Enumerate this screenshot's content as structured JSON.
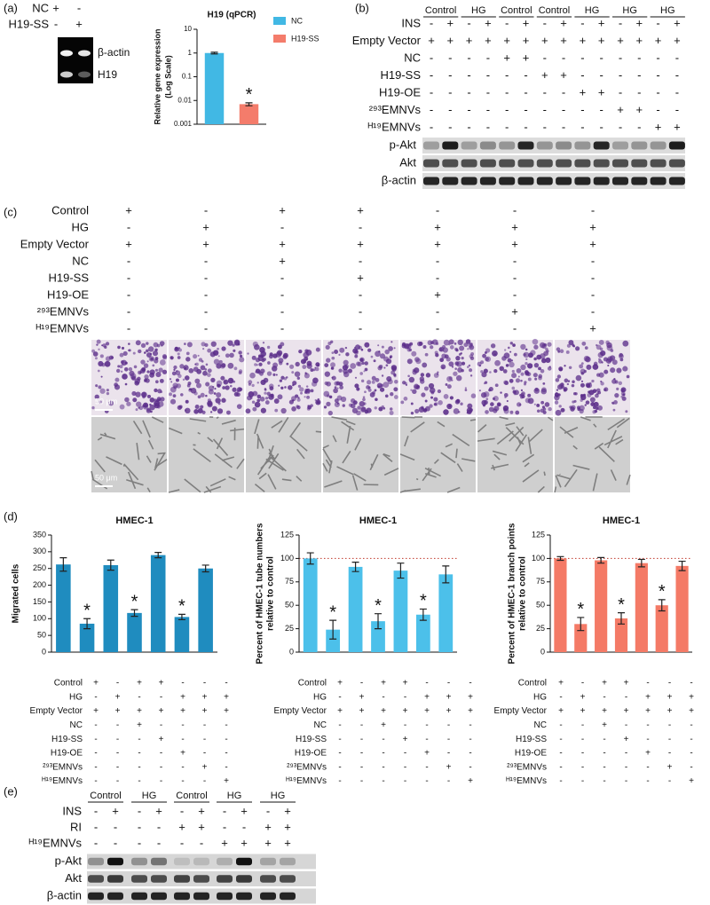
{
  "panel_labels": [
    "(a)",
    "(b)",
    "(c)",
    "(d)",
    "(e)"
  ],
  "panel_a": {
    "rows": [
      {
        "label": "NC",
        "signs": [
          "+",
          "-"
        ]
      },
      {
        "label": "H19-SS",
        "signs": [
          "-",
          "+"
        ]
      }
    ],
    "bands": [
      "β-actin",
      "H19"
    ]
  },
  "panel_b": {
    "groups": [
      "Control",
      "HG",
      "Control",
      "Control",
      "HG",
      "HG",
      "HG"
    ],
    "rows": [
      {
        "label": "INS",
        "signs": [
          "-",
          "+",
          "-",
          "+",
          "-",
          "+",
          "-",
          "+",
          "-",
          "+",
          "-",
          "+",
          "-",
          "+"
        ]
      },
      {
        "label": "Empty Vector",
        "signs": [
          "+",
          "+",
          "+",
          "+",
          "+",
          "+",
          "+",
          "+",
          "+",
          "+",
          "+",
          "+",
          "+",
          "+"
        ]
      },
      {
        "label": "NC",
        "signs": [
          "-",
          "-",
          "-",
          "-",
          "+",
          "+",
          "-",
          "-",
          "-",
          "-",
          "-",
          "-",
          "-",
          "-"
        ]
      },
      {
        "label": "H19-SS",
        "signs": [
          "-",
          "-",
          "-",
          "-",
          "-",
          "-",
          "+",
          "+",
          "-",
          "-",
          "-",
          "-",
          "-",
          "-"
        ]
      },
      {
        "label": "H19-OE",
        "signs": [
          "-",
          "-",
          "-",
          "-",
          "-",
          "-",
          "-",
          "-",
          "+",
          "+",
          "-",
          "-",
          "-",
          "-"
        ]
      },
      {
        "label": "²⁹³EMNVs",
        "signs": [
          "-",
          "-",
          "-",
          "-",
          "-",
          "-",
          "-",
          "-",
          "-",
          "-",
          "+",
          "+",
          "-",
          "-"
        ]
      },
      {
        "label": "ᴴ¹⁹EMNVs",
        "signs": [
          "-",
          "-",
          "-",
          "-",
          "-",
          "-",
          "-",
          "-",
          "-",
          "-",
          "-",
          "-",
          "+",
          "+"
        ]
      }
    ],
    "bands": [
      "p-Akt",
      "Akt",
      "β-actin"
    ]
  },
  "panel_c": {
    "rows": [
      {
        "label": "Control",
        "signs": [
          "+",
          "-",
          "+",
          "+",
          "-",
          "-",
          "-"
        ]
      },
      {
        "label": "HG",
        "signs": [
          "-",
          "+",
          "-",
          "-",
          "+",
          "+",
          "+"
        ]
      },
      {
        "label": "Empty Vector",
        "signs": [
          "+",
          "+",
          "+",
          "+",
          "+",
          "+",
          "+"
        ]
      },
      {
        "label": "NC",
        "signs": [
          "-",
          "-",
          "+",
          "-",
          "-",
          "-",
          "-"
        ]
      },
      {
        "label": "H19-SS",
        "signs": [
          "-",
          "-",
          "-",
          "+",
          "-",
          "-",
          "-"
        ]
      },
      {
        "label": "H19-OE",
        "signs": [
          "-",
          "-",
          "-",
          "-",
          "+",
          "-",
          "-"
        ]
      },
      {
        "label": "²⁹³EMNVs",
        "signs": [
          "-",
          "-",
          "-",
          "-",
          "-",
          "+",
          "-"
        ]
      },
      {
        "label": "ᴴ¹⁹EMNVs",
        "signs": [
          "-",
          "-",
          "-",
          "-",
          "-",
          "-",
          "+"
        ]
      }
    ],
    "scale_bar": "50 μm"
  },
  "panel_d": {
    "rows": [
      {
        "label": "Control",
        "signs": [
          "+",
          "-",
          "+",
          "+",
          "-",
          "-",
          "-"
        ]
      },
      {
        "label": "HG",
        "signs": [
          "-",
          "+",
          "-",
          "-",
          "+",
          "+",
          "+"
        ]
      },
      {
        "label": "Empty Vector",
        "signs": [
          "+",
          "+",
          "+",
          "+",
          "+",
          "+",
          "+"
        ]
      },
      {
        "label": "NC",
        "signs": [
          "-",
          "-",
          "+",
          "-",
          "-",
          "-",
          "-"
        ]
      },
      {
        "label": "H19-SS",
        "signs": [
          "-",
          "-",
          "-",
          "+",
          "-",
          "-",
          "-"
        ]
      },
      {
        "label": "H19-OE",
        "signs": [
          "-",
          "-",
          "-",
          "-",
          "+",
          "-",
          "-"
        ]
      },
      {
        "label": "²⁹³EMNVs",
        "signs": [
          "-",
          "-",
          "-",
          "-",
          "-",
          "+",
          "-"
        ]
      },
      {
        "label": "ᴴ¹⁹EMNVs",
        "signs": [
          "-",
          "-",
          "-",
          "-",
          "-",
          "-",
          "+"
        ]
      }
    ]
  },
  "panel_e": {
    "groups": [
      "Control",
      "HG",
      "Control",
      "HG",
      "HG"
    ],
    "rows": [
      {
        "label": "INS",
        "signs": [
          "-",
          "+",
          "-",
          "+",
          "-",
          "+",
          "-",
          "+",
          "-",
          "+"
        ]
      },
      {
        "label": "RI",
        "signs": [
          "-",
          "-",
          "-",
          "-",
          "+",
          "+",
          "-",
          "-",
          "+",
          "+"
        ]
      },
      {
        "label": "ᴴ¹⁹EMNVs",
        "signs": [
          "-",
          "-",
          "-",
          "-",
          "-",
          "-",
          "+",
          "+",
          "+",
          "+"
        ]
      }
    ],
    "bands": [
      "p-Akt",
      "Akt",
      "β-actin"
    ]
  },
  "chart_data": [
    {
      "type": "bar",
      "title": "H19 (qPCR)",
      "ylabel": [
        "Relative gene expression",
        "(Log Scale)"
      ],
      "log": true,
      "categories": [
        "NC",
        "H19-SS"
      ],
      "values": [
        1,
        0.007
      ],
      "errors": [
        0.08,
        0.001
      ],
      "colors": [
        "#41b8e4",
        "#f47c6b"
      ],
      "markers": [
        null,
        "*"
      ],
      "ylim": [
        0.001,
        10
      ],
      "yticks": [
        0.001,
        0.01,
        0.1,
        1,
        10
      ],
      "legend": "right"
    },
    {
      "type": "bar",
      "title": "HMEC-1",
      "ylabel": [
        "Migrated cells"
      ],
      "values": [
        262,
        85,
        260,
        117,
        290,
        105,
        250
      ],
      "errors": [
        20,
        15,
        15,
        10,
        8,
        8,
        10
      ],
      "color": "#1f8cbf",
      "markers": [
        null,
        "*",
        null,
        "*",
        null,
        "*",
        null
      ],
      "ylim": [
        0,
        350
      ],
      "yticks": [
        0,
        50,
        100,
        150,
        200,
        250,
        300,
        350
      ]
    },
    {
      "type": "bar",
      "title": "HMEC-1",
      "ylabel": [
        "Percent of HMEC-1 tube numbers",
        "relative to control"
      ],
      "values": [
        100,
        24,
        91,
        33,
        87,
        40,
        83
      ],
      "errors": [
        6,
        10,
        5,
        8,
        8,
        6,
        9
      ],
      "color": "#4cc0ea",
      "markers": [
        null,
        "*",
        null,
        "*",
        null,
        "*",
        null
      ],
      "refline": 100,
      "ylim": [
        0,
        125
      ],
      "yticks": [
        0,
        25,
        50,
        75,
        100,
        125
      ]
    },
    {
      "type": "bar",
      "title": "HMEC-1",
      "ylabel": [
        "Percent of HMEC-1 branch points",
        "relative to control"
      ],
      "values": [
        100,
        30,
        98,
        36,
        95,
        50,
        92
      ],
      "errors": [
        2,
        7,
        3,
        6,
        4,
        6,
        5
      ],
      "color": "#f47a66",
      "markers": [
        null,
        "*",
        null,
        "*",
        null,
        "*",
        null
      ],
      "refline": 100,
      "ylim": [
        0,
        125
      ],
      "yticks": [
        0,
        25,
        50,
        75,
        100,
        125
      ]
    }
  ]
}
